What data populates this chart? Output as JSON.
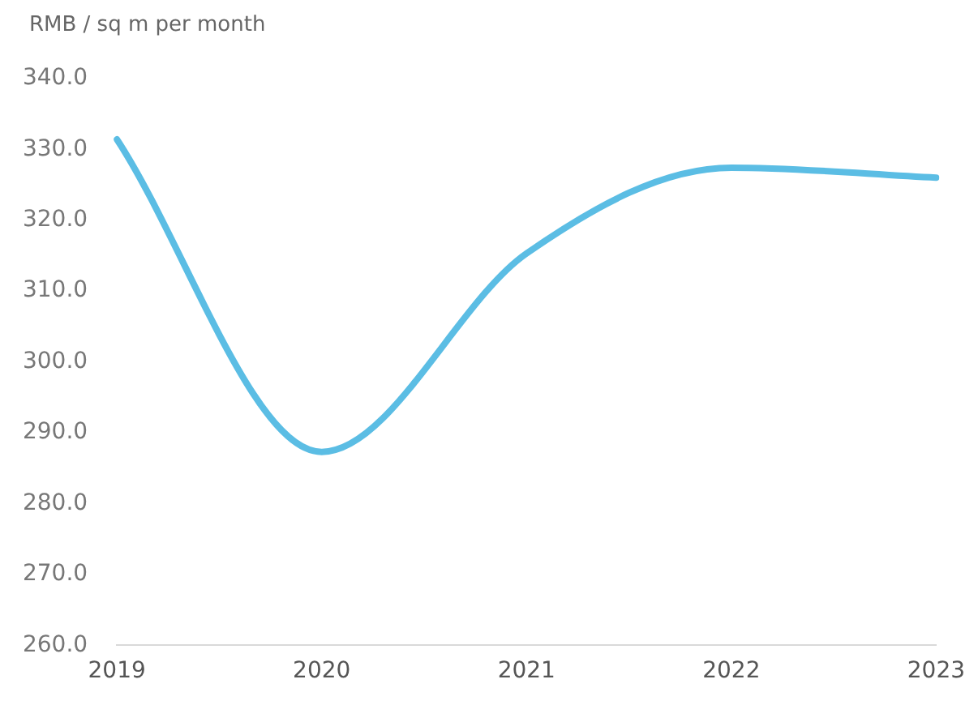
{
  "chart_data": {
    "type": "line",
    "ylabel": "RMB / sq m per month",
    "categories": [
      "2019",
      "2020",
      "2021",
      "2022",
      "2023"
    ],
    "series": [
      {
        "color": "#5bbde4",
        "values": [
          331.4,
          287.3,
          315.3,
          327.4,
          326.0
        ]
      }
    ],
    "ylim": [
      260,
      340
    ],
    "yticks": [
      {
        "value": 260,
        "label": "260.0"
      },
      {
        "value": 270,
        "label": "270.0"
      },
      {
        "value": 280,
        "label": "280.0"
      },
      {
        "value": 290,
        "label": "290.0"
      },
      {
        "value": 300,
        "label": "300.0"
      },
      {
        "value": 310,
        "label": "310.0"
      },
      {
        "value": 320,
        "label": "320.0"
      },
      {
        "value": 330,
        "label": "330.0"
      },
      {
        "value": 340,
        "label": "340.0"
      }
    ],
    "grid": false,
    "legend": false,
    "marker": "none",
    "line_style": "solid"
  }
}
